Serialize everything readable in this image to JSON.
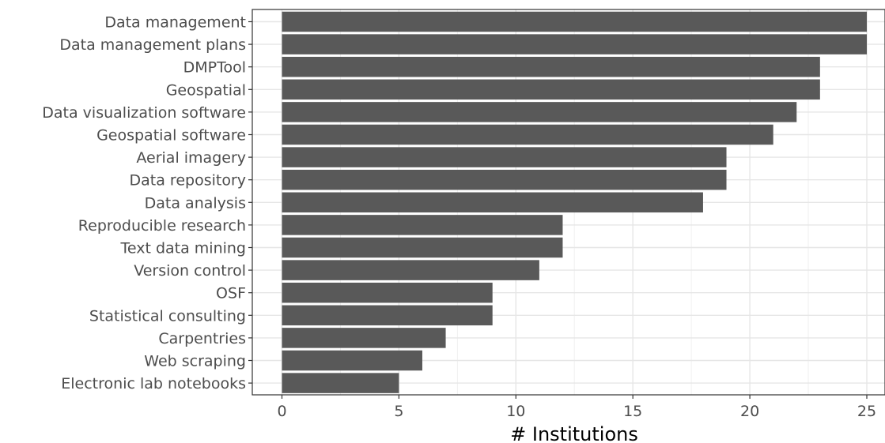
{
  "chart_data": {
    "type": "bar",
    "orientation": "horizontal",
    "title": "",
    "xlabel": "# Institutions",
    "ylabel": "",
    "xlim": [
      0,
      25
    ],
    "xticks": [
      0,
      5,
      10,
      15,
      20,
      25
    ],
    "grid": true,
    "legend": "none",
    "bar_color": "#595959",
    "categories": [
      "Data management",
      "Data management plans",
      "DMPTool",
      "Geospatial",
      "Data visualization software",
      "Geospatial software",
      "Aerial imagery",
      "Data repository",
      "Data analysis",
      "Reproducible research",
      "Text data mining",
      "Version control",
      "OSF",
      "Statistical consulting",
      "Carpentries",
      "Web scraping",
      "Electronic lab notebooks"
    ],
    "values": [
      25,
      25,
      23,
      23,
      22,
      21,
      19,
      19,
      18,
      12,
      12,
      11,
      9,
      9,
      7,
      6,
      5
    ]
  }
}
